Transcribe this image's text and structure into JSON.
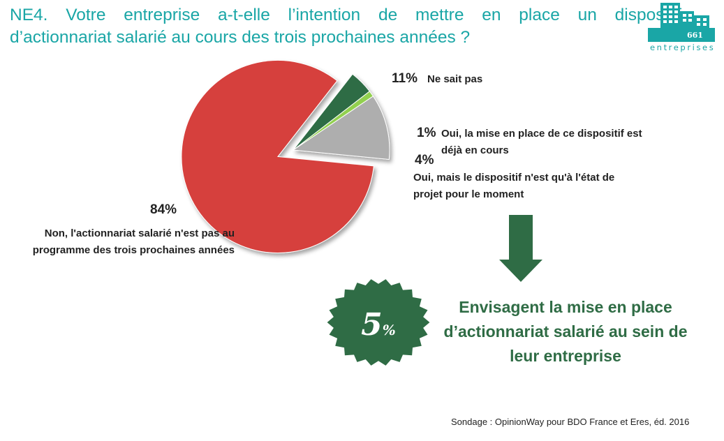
{
  "title": {
    "line1": "NE4. Votre entreprise a-t-elle l’intention de mettre en place un dispositif",
    "line2": "d’actionnariat salarié au cours des trois prochaines années ?"
  },
  "logo": {
    "count": "661",
    "word": "entreprises"
  },
  "chart_data": {
    "type": "pie",
    "slices": [
      {
        "pct_label": "84%",
        "value": 84,
        "label_line1": "Non, l'actionnariat salarié n'est pas au",
        "label_line2": "programme des trois prochaines années",
        "color": "#d6403d",
        "exploded": true
      },
      {
        "pct_label": "11%",
        "value": 11,
        "label_line1": "Ne sait pas",
        "label_line2": "",
        "color": "#aeaeae",
        "exploded": false
      },
      {
        "pct_label": "1%",
        "value": 1,
        "label_line1": "Oui, la mise en place de ce dispositif est",
        "label_line2": "déjà en cours",
        "color": "#92d050",
        "exploded": false
      },
      {
        "pct_label": "4%",
        "value": 4,
        "label_line1": "Oui, mais le dispositif n'est qu'à l'état de",
        "label_line2": "projet pour le moment",
        "color": "#2f6c45",
        "exploded": false
      }
    ]
  },
  "callout": {
    "value": "5",
    "unit": "%",
    "line1": "Envisagent la mise en place",
    "line2": "d’actionnariat salarié au sein de",
    "line3": "leur entreprise"
  },
  "source": "Sondage : OpinionWay pour BDO France et Eres, éd. 2016",
  "colors": {
    "title": "#1aa6a6",
    "accent_green": "#2f6c45",
    "red": "#d6403d"
  }
}
